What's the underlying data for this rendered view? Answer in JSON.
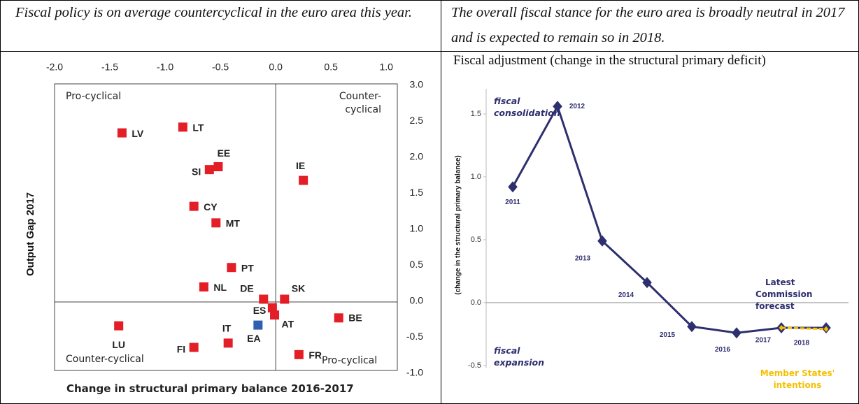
{
  "header": {
    "left": "Fiscal policy is on average countercyclical in the euro area this year.",
    "right": "The overall fiscal stance for the euro area is broadly neutral in 2017 and is expected to remain so in 2018."
  },
  "chart_data": [
    {
      "type": "scatter",
      "x_label": "Change in structural primary balance 2016-2017",
      "y_label": "Output Gap 2017",
      "annotations": [
        "Pro-cyclical",
        "Counter-cyclical",
        "Counter-cyclical",
        "Pro-cyclical"
      ],
      "labels": [
        "LV",
        "LT",
        "EE",
        "SI",
        "IE",
        "CY",
        "MT",
        "PT",
        "NL",
        "DE",
        "SK",
        "ES",
        "AT",
        "EA",
        "BE",
        "LU",
        "IT",
        "FI",
        "FR"
      ],
      "x": [
        -1.39,
        -0.84,
        -0.52,
        -0.6,
        0.25,
        -0.74,
        -0.54,
        -0.4,
        -0.65,
        -0.11,
        0.08,
        -0.03,
        -0.01,
        -0.16,
        0.57,
        -1.42,
        -0.43,
        -0.74,
        0.21
      ],
      "values": [
        2.3,
        2.38,
        1.83,
        1.79,
        1.64,
        1.28,
        1.05,
        0.43,
        0.16,
        -0.01,
        -0.01,
        -0.13,
        -0.23,
        -0.37,
        -0.27,
        -0.38,
        -0.62,
        -0.68,
        -0.78
      ],
      "point_colors": [
        "#e41e26",
        "#e41e26",
        "#e41e26",
        "#e41e26",
        "#e41e26",
        "#e41e26",
        "#e41e26",
        "#e41e26",
        "#e41e26",
        "#e41e26",
        "#e41e26",
        "#e41e26",
        "#e41e26",
        "#2f5fb3",
        "#e41e26",
        "#e41e26",
        "#e41e26",
        "#e41e26",
        "#e41e26"
      ],
      "xlim": [
        -2.0,
        1.1
      ],
      "xticks": [
        {
          "value": -2,
          "label": "-2.0"
        },
        {
          "value": -1.5,
          "label": "-1.5"
        },
        {
          "value": -1,
          "label": "-1.0"
        },
        {
          "value": -0.5,
          "label": "-0.5"
        },
        {
          "value": 0,
          "label": "0.0"
        },
        {
          "value": 0.5,
          "label": "0.5"
        },
        {
          "value": 1,
          "label": "1.0"
        }
      ],
      "ylim": [
        -1.0,
        3.0
      ],
      "yticks": [
        {
          "value": 3,
          "label": "3.0"
        },
        {
          "value": 2.5,
          "label": "2.5"
        },
        {
          "value": 2,
          "label": "2.0"
        },
        {
          "value": 1.5,
          "label": "1.5"
        },
        {
          "value": 1,
          "label": "1.0"
        },
        {
          "value": 0.5,
          "label": "0.5"
        },
        {
          "value": 0,
          "label": "0.0"
        },
        {
          "value": -0.5,
          "label": "-0.5"
        },
        {
          "value": -1,
          "label": "-1.0"
        }
      ]
    },
    {
      "type": "line",
      "title": "Fiscal adjustment (change in the structural primary deficit)",
      "y_label": "(change in the structural primary balance)",
      "annotations": [
        "fiscal consolidation",
        "fiscal expansion"
      ],
      "categories": [
        "2011",
        "2012",
        "2013",
        "2014",
        "2015",
        "2016",
        "2017",
        "2018"
      ],
      "series": [
        {
          "name": "Latest Commission forecast",
          "color": "#2e2f6e",
          "values": [
            0.92,
            1.56,
            0.49,
            0.16,
            -0.19,
            -0.24,
            -0.2,
            -0.2
          ]
        },
        {
          "name": "Member States' intentions",
          "color": "#f5c000",
          "dashed": true,
          "values": [
            null,
            null,
            null,
            null,
            null,
            null,
            -0.2,
            -0.21
          ]
        }
      ],
      "ylim": [
        -0.6,
        1.7
      ],
      "yticks": [
        {
          "value": 1.5,
          "label": "1.5"
        },
        {
          "value": 1,
          "label": "1.0"
        },
        {
          "value": 0.5,
          "label": "0.5"
        },
        {
          "value": 0,
          "label": "0.0"
        },
        {
          "value": -0.5,
          "label": "-0.5"
        }
      ]
    }
  ]
}
